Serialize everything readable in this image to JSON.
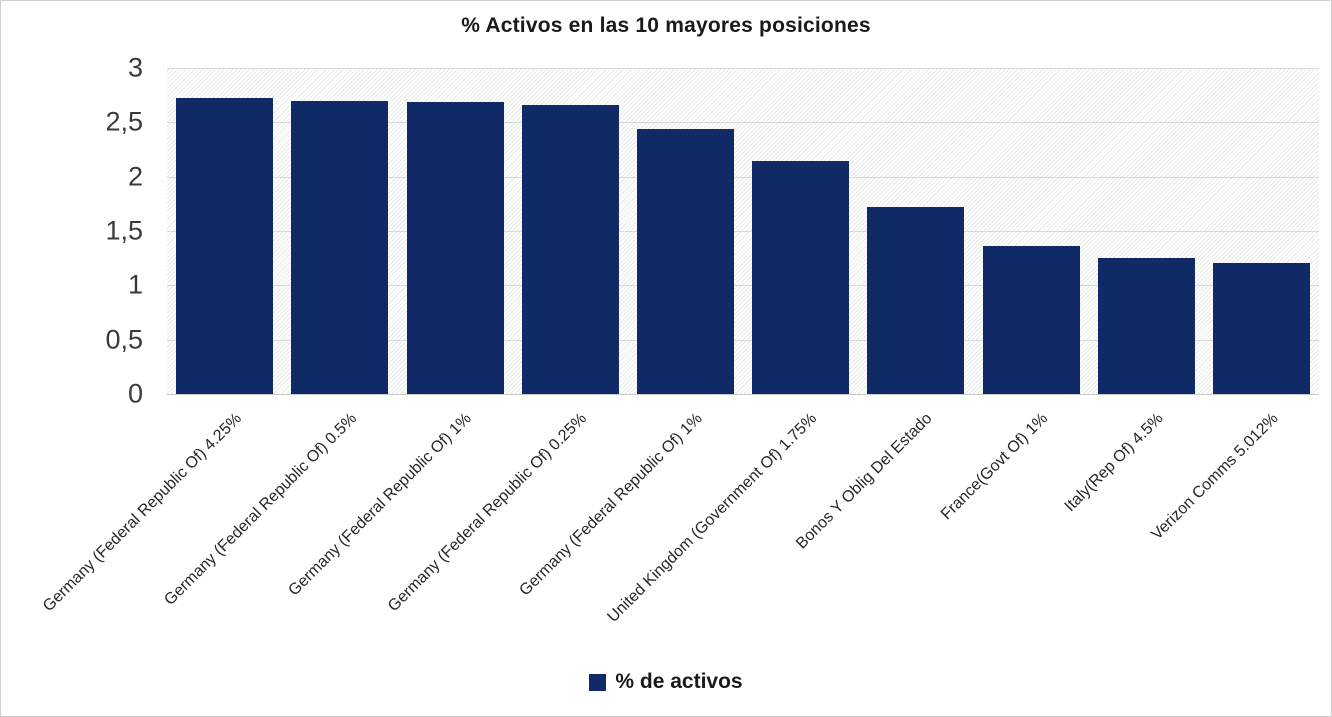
{
  "chart": {
    "title": "% Activos en las 10 mayores posiciones",
    "legend_label": "% de activos"
  },
  "chart_data": {
    "type": "bar",
    "title": "% Activos en las 10 mayores posiciones",
    "categories": [
      "Germany (Federal Republic Of) 4.25%",
      "Germany (Federal Republic Of) 0.5%",
      "Germany (Federal Republic Of) 1%",
      "Germany (Federal Republic Of) 0.25%",
      "Germany (Federal Republic Of) 1%",
      "United Kingdom (Government Of) 1.75%",
      "Bonos Y Oblig Del Estado",
      "France(Govt Of) 1%",
      "Italy(Rep Of) 4.5%",
      "Verizon Comms 5.012%"
    ],
    "series": [
      {
        "name": "% de activos",
        "values": [
          2.72,
          2.7,
          2.69,
          2.66,
          2.44,
          2.14,
          1.72,
          1.36,
          1.25,
          1.21
        ]
      }
    ],
    "xlabel": "",
    "ylabel": "",
    "ylim": [
      0,
      3
    ],
    "ytick_values": [
      0,
      0.5,
      1,
      1.5,
      2,
      2.5,
      3
    ],
    "ytick_labels": [
      "0",
      "0,5",
      "1",
      "1,5",
      "2",
      "2,5",
      "3"
    ],
    "decimal_separator": "comma",
    "grid": true,
    "legend_position": "bottom",
    "x_label_rotation_deg": 45,
    "bar_color": "#0f2a66",
    "gridline_color": "#d9d9d9",
    "plot_background": "diagonal-hatch"
  }
}
